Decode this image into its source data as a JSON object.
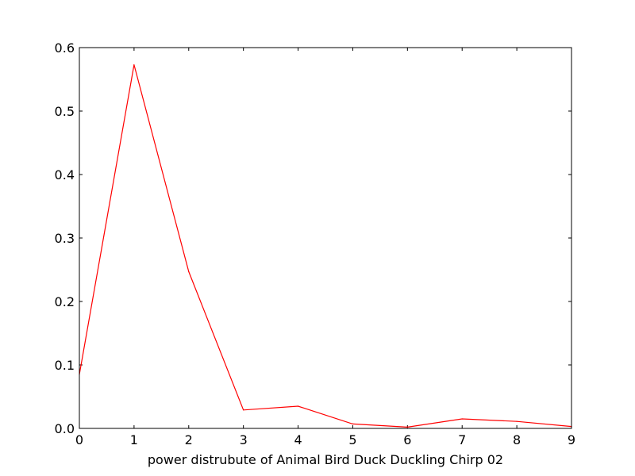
{
  "chart_data": {
    "type": "line",
    "title": "",
    "xlabel": "power distrubute of Animal Bird Duck Duckling Chirp 02",
    "ylabel": "",
    "xlim": [
      0,
      9
    ],
    "ylim": [
      0,
      0.6
    ],
    "grid": false,
    "x_ticks": [
      0,
      1,
      2,
      3,
      4,
      5,
      6,
      7,
      8,
      9
    ],
    "y_ticks": [
      0.0,
      0.1,
      0.2,
      0.3,
      0.4,
      0.5,
      0.6
    ],
    "x_tick_labels": [
      "0",
      "1",
      "2",
      "3",
      "4",
      "5",
      "6",
      "7",
      "8",
      "9"
    ],
    "y_tick_labels": [
      "0.0",
      "0.1",
      "0.2",
      "0.3",
      "0.4",
      "0.5",
      "0.6"
    ],
    "series": [
      {
        "color": "#ff0000",
        "x": [
          0,
          1,
          2,
          3,
          4,
          5,
          6,
          7,
          8,
          9
        ],
        "values": [
          0.085,
          0.573,
          0.247,
          0.029,
          0.035,
          0.007,
          0.002,
          0.015,
          0.011,
          0.003
        ]
      }
    ]
  }
}
